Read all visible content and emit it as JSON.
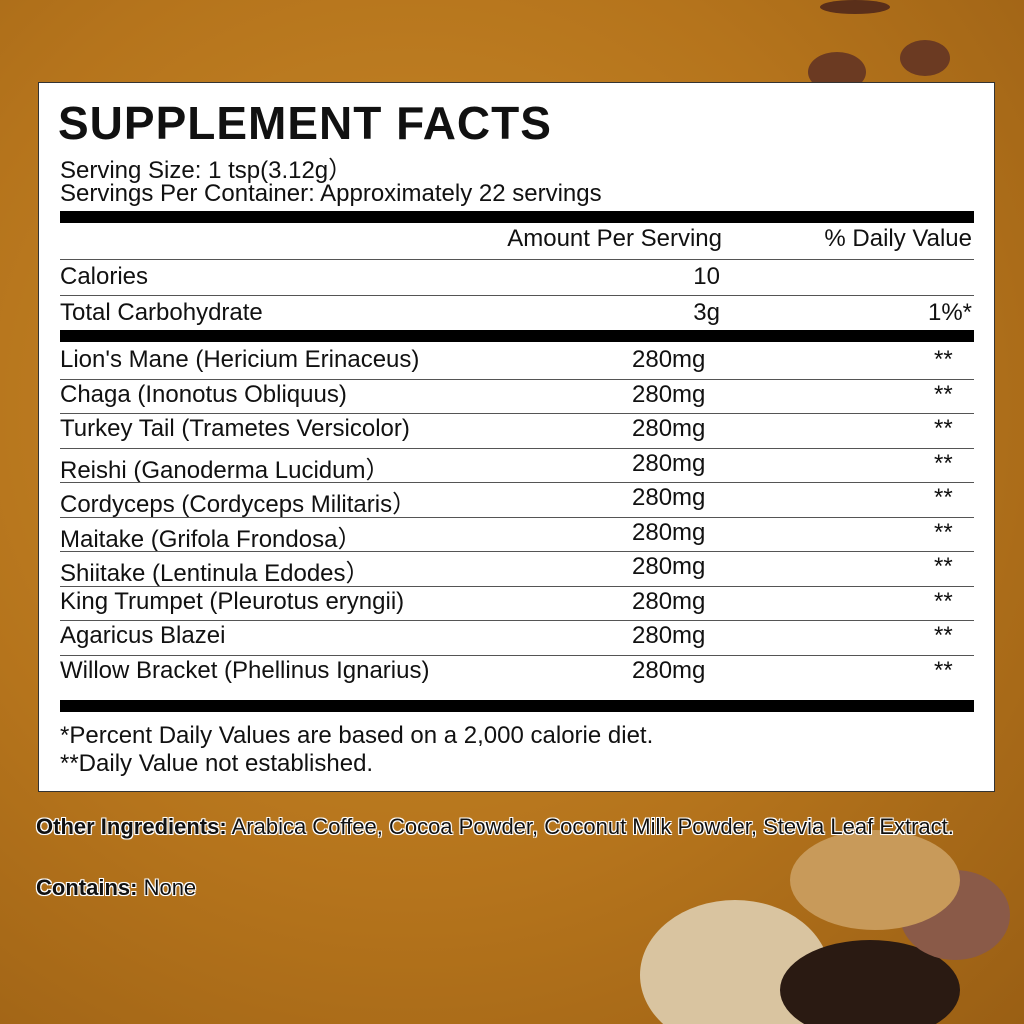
{
  "header": {
    "title": "SUPPLEMENT FACTS",
    "serving_size": "Serving Size: 1 tsp(3.12g）",
    "servings_per_container": "Servings Per Container: Approximately 22 servings"
  },
  "columns": {
    "amount": "Amount Per Serving",
    "daily_value": "% Daily Value"
  },
  "nutrients": [
    {
      "name": "Calories",
      "amount": "10",
      "daily_value": null
    },
    {
      "name": "Total Carbohydrate",
      "amount": "3g",
      "daily_value": "1%*"
    }
  ],
  "ingredients": [
    {
      "name": "Lion's Mane (Hericium Erinaceus)",
      "amount": "280mg",
      "daily_value": "**"
    },
    {
      "name": "Chaga (Inonotus Obliquus)",
      "amount": "280mg",
      "daily_value": "**"
    },
    {
      "name": "Turkey Tail (Trametes Versicolor)",
      "amount": "280mg",
      "daily_value": "**"
    },
    {
      "name": "Reishi (Ganoderma Lucidum）",
      "amount": "280mg",
      "daily_value": "**"
    },
    {
      "name": "Cordyceps (Cordyceps Militaris）",
      "amount": "280mg",
      "daily_value": "**"
    },
    {
      "name": "Maitake (Grifola Frondosa）",
      "amount": "280mg",
      "daily_value": "**"
    },
    {
      "name": "Shiitake (Lentinula Edodes）",
      "amount": "280mg",
      "daily_value": "**"
    },
    {
      "name": "King Trumpet (Pleurotus eryngii)",
      "amount": "280mg",
      "daily_value": "**"
    },
    {
      "name": "Agaricus Blazei",
      "amount": "280mg",
      "daily_value": "**"
    },
    {
      "name": "Willow Bracket (Phellinus Ignarius)",
      "amount": "280mg",
      "daily_value": "**"
    }
  ],
  "footnotes": [
    "*Percent Daily Values are based on a 2,000 calorie diet.",
    "**Daily Value not established."
  ],
  "other_ingredients": {
    "label": "Other Ingredients:",
    "text": "Arabica Coffee, Cocoa Powder, Coconut Milk Powder, Stevia Leaf Extract."
  },
  "contains": {
    "label": "Contains:",
    "text": "None"
  }
}
